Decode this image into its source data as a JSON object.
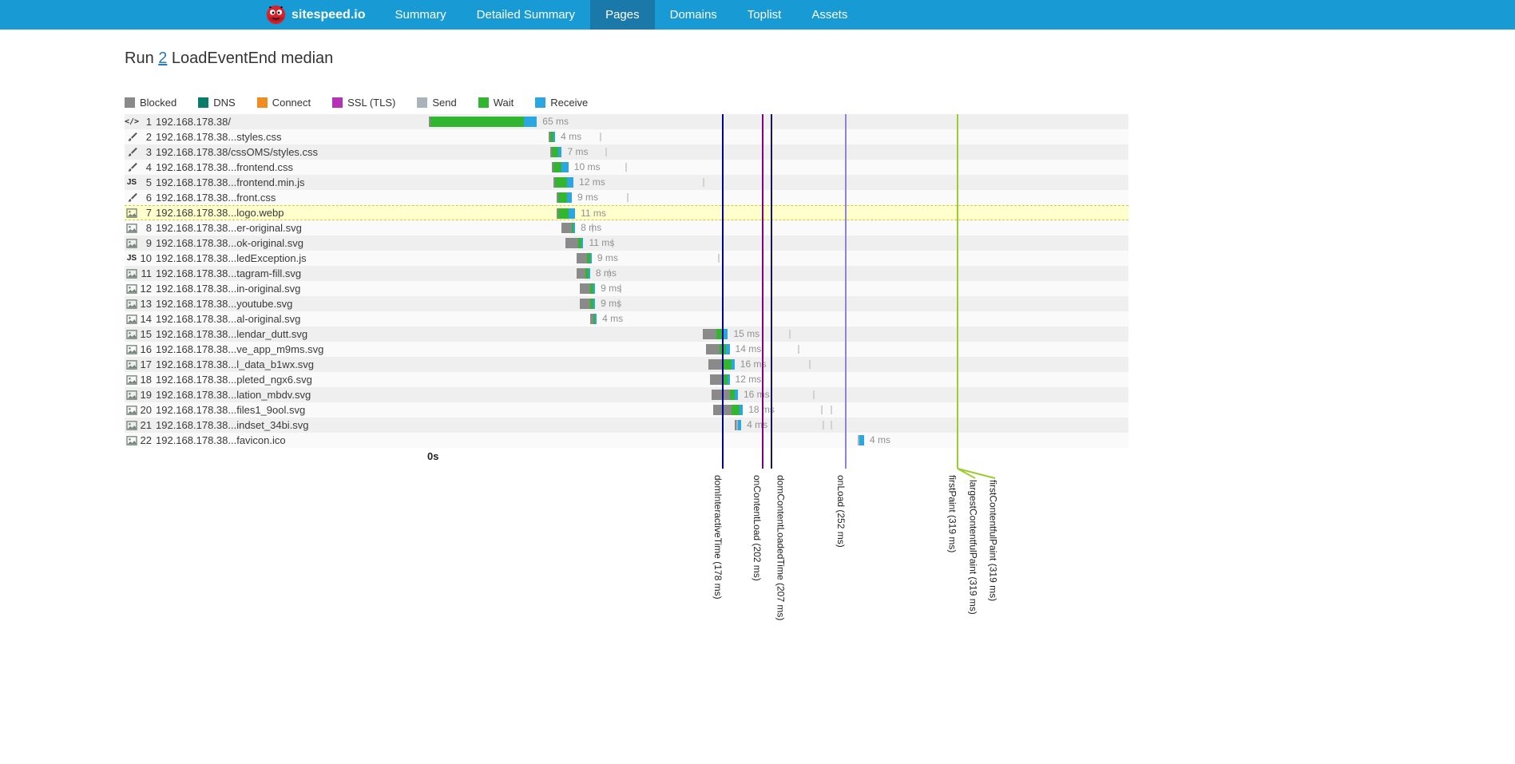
{
  "nav": {
    "brand": "sitespeed.io",
    "items": [
      {
        "label": "Summary",
        "active": false
      },
      {
        "label": "Detailed Summary",
        "active": false
      },
      {
        "label": "Pages",
        "active": true
      },
      {
        "label": "Domains",
        "active": false
      },
      {
        "label": "Toplist",
        "active": false
      },
      {
        "label": "Assets",
        "active": false
      }
    ]
  },
  "title": {
    "prefix": "Run ",
    "run": "2",
    "suffix": " LoadEventEnd median"
  },
  "legend": [
    {
      "key": "blocked",
      "label": "Blocked",
      "color": "#8a8a8a"
    },
    {
      "key": "dns",
      "label": "DNS",
      "color": "#0a7d68"
    },
    {
      "key": "connect",
      "label": "Connect",
      "color": "#ef8d22"
    },
    {
      "key": "ssl",
      "label": "SSL (TLS)",
      "color": "#b632b6"
    },
    {
      "key": "send",
      "label": "Send",
      "color": "#a9b3bc"
    },
    {
      "key": "wait",
      "label": "Wait",
      "color": "#32b632"
    },
    {
      "key": "receive",
      "label": "Receive",
      "color": "#2ba6e0"
    }
  ],
  "chart_data": {
    "type": "waterfall",
    "axis_start_label": "0s",
    "time_unit": "ms",
    "phase_colors": {
      "blocked": "#8a8a8a",
      "dns": "#0a7d68",
      "connect": "#ef8d22",
      "ssl": "#b632b6",
      "send": "#a9b3bc",
      "wait": "#32b632",
      "receive": "#2ba6e0"
    },
    "rows": [
      {
        "n": 1,
        "icon": "html",
        "label": "192.168.178.38/",
        "start": 1,
        "dur_label": "65 ms",
        "segments": [
          {
            "phase": "blocked",
            "ms": 1
          },
          {
            "phase": "wait",
            "ms": 56
          },
          {
            "phase": "receive",
            "ms": 8
          }
        ],
        "ticks": []
      },
      {
        "n": 2,
        "icon": "css",
        "label": "192.168.178.38...styles.css",
        "start": 73,
        "dur_label": "4 ms",
        "segments": [
          {
            "phase": "blocked",
            "ms": 1
          },
          {
            "phase": "wait",
            "ms": 2
          },
          {
            "phase": "receive",
            "ms": 1
          }
        ],
        "ticks": [
          104
        ]
      },
      {
        "n": 3,
        "icon": "css",
        "label": "192.168.178.38/cssOMS/styles.css",
        "start": 74,
        "dur_label": "7 ms",
        "segments": [
          {
            "phase": "blocked",
            "ms": 1
          },
          {
            "phase": "wait",
            "ms": 4
          },
          {
            "phase": "receive",
            "ms": 2
          }
        ],
        "ticks": [
          107
        ]
      },
      {
        "n": 4,
        "icon": "css",
        "label": "192.168.178.38...frontend.css",
        "start": 75,
        "dur_label": "10 ms",
        "segments": [
          {
            "phase": "blocked",
            "ms": 1
          },
          {
            "phase": "wait",
            "ms": 5
          },
          {
            "phase": "receive",
            "ms": 4
          }
        ],
        "ticks": [
          119
        ]
      },
      {
        "n": 5,
        "icon": "js",
        "label": "192.168.178.38...frontend.min.js",
        "start": 76,
        "dur_label": "12 ms",
        "segments": [
          {
            "phase": "blocked",
            "ms": 1
          },
          {
            "phase": "wait",
            "ms": 7
          },
          {
            "phase": "receive",
            "ms": 4
          }
        ],
        "ticks": [
          166
        ]
      },
      {
        "n": 6,
        "icon": "css",
        "label": "192.168.178.38...front.css",
        "start": 78,
        "dur_label": "9 ms",
        "segments": [
          {
            "phase": "blocked",
            "ms": 1
          },
          {
            "phase": "wait",
            "ms": 5
          },
          {
            "phase": "receive",
            "ms": 3
          }
        ],
        "ticks": [
          120
        ]
      },
      {
        "n": 7,
        "icon": "img",
        "label": "192.168.178.38...logo.webp",
        "start": 78,
        "dur_label": "11 ms",
        "highlight": true,
        "segments": [
          {
            "phase": "blocked",
            "ms": 1
          },
          {
            "phase": "wait",
            "ms": 6
          },
          {
            "phase": "receive",
            "ms": 4
          }
        ],
        "ticks": []
      },
      {
        "n": 8,
        "icon": "img",
        "label": "192.168.178.38...er-original.svg",
        "start": 81,
        "dur_label": "8 ms",
        "segments": [
          {
            "phase": "blocked",
            "ms": 6
          },
          {
            "phase": "wait",
            "ms": 1
          },
          {
            "phase": "receive",
            "ms": 1
          }
        ],
        "ticks": [
          99
        ]
      },
      {
        "n": 9,
        "icon": "img",
        "label": "192.168.178.38...ok-original.svg",
        "start": 83,
        "dur_label": "11 ms",
        "segments": [
          {
            "phase": "blocked",
            "ms": 8
          },
          {
            "phase": "wait",
            "ms": 2
          },
          {
            "phase": "receive",
            "ms": 1
          }
        ],
        "ticks": [
          111
        ]
      },
      {
        "n": 10,
        "icon": "js",
        "label": "192.168.178.38...ledException.js",
        "start": 90,
        "dur_label": "9 ms",
        "segments": [
          {
            "phase": "blocked",
            "ms": 6
          },
          {
            "phase": "wait",
            "ms": 2
          },
          {
            "phase": "receive",
            "ms": 1
          }
        ],
        "ticks": [
          175
        ]
      },
      {
        "n": 11,
        "icon": "img",
        "label": "192.168.178.38...tagram-fill.svg",
        "start": 90,
        "dur_label": "8 ms",
        "segments": [
          {
            "phase": "blocked",
            "ms": 5
          },
          {
            "phase": "wait",
            "ms": 2
          },
          {
            "phase": "receive",
            "ms": 1
          }
        ],
        "ticks": [
          109
        ]
      },
      {
        "n": 12,
        "icon": "img",
        "label": "192.168.178.38...in-original.svg",
        "start": 92,
        "dur_label": "9 ms",
        "segments": [
          {
            "phase": "blocked",
            "ms": 6
          },
          {
            "phase": "wait",
            "ms": 2
          },
          {
            "phase": "receive",
            "ms": 1
          }
        ],
        "ticks": [
          116
        ]
      },
      {
        "n": 13,
        "icon": "img",
        "label": "192.168.178.38...youtube.svg",
        "start": 92,
        "dur_label": "9 ms",
        "segments": [
          {
            "phase": "blocked",
            "ms": 6
          },
          {
            "phase": "wait",
            "ms": 2
          },
          {
            "phase": "receive",
            "ms": 1
          }
        ],
        "ticks": [
          115
        ]
      },
      {
        "n": 14,
        "icon": "img",
        "label": "192.168.178.38...al-original.svg",
        "start": 98,
        "dur_label": "4 ms",
        "segments": [
          {
            "phase": "blocked",
            "ms": 2
          },
          {
            "phase": "wait",
            "ms": 1
          },
          {
            "phase": "receive",
            "ms": 1
          }
        ],
        "ticks": []
      },
      {
        "n": 15,
        "icon": "img",
        "label": "192.168.178.38...lendar_dutt.svg",
        "start": 166,
        "dur_label": "15 ms",
        "segments": [
          {
            "phase": "blocked",
            "ms": 8
          },
          {
            "phase": "wait",
            "ms": 4
          },
          {
            "phase": "receive",
            "ms": 3
          }
        ],
        "ticks": [
          218
        ]
      },
      {
        "n": 16,
        "icon": "img",
        "label": "192.168.178.38...ve_app_m9ms.svg",
        "start": 168,
        "dur_label": "14 ms",
        "segments": [
          {
            "phase": "blocked",
            "ms": 8
          },
          {
            "phase": "wait",
            "ms": 4
          },
          {
            "phase": "receive",
            "ms": 2
          }
        ],
        "ticks": [
          223
        ]
      },
      {
        "n": 17,
        "icon": "img",
        "label": "192.168.178.38...l_data_b1wx.svg",
        "start": 169,
        "dur_label": "16 ms",
        "segments": [
          {
            "phase": "blocked",
            "ms": 9
          },
          {
            "phase": "wait",
            "ms": 5
          },
          {
            "phase": "receive",
            "ms": 2
          }
        ],
        "ticks": [
          230
        ]
      },
      {
        "n": 18,
        "icon": "img",
        "label": "192.168.178.38...pleted_ngx6.svg",
        "start": 170,
        "dur_label": "12 ms",
        "segments": [
          {
            "phase": "blocked",
            "ms": 8
          },
          {
            "phase": "wait",
            "ms": 3
          },
          {
            "phase": "receive",
            "ms": 1
          }
        ],
        "ticks": []
      },
      {
        "n": 19,
        "icon": "img",
        "label": "192.168.178.38...lation_mbdv.svg",
        "start": 171,
        "dur_label": "16 ms",
        "segments": [
          {
            "phase": "blocked",
            "ms": 11
          },
          {
            "phase": "wait",
            "ms": 3
          },
          {
            "phase": "receive",
            "ms": 2
          }
        ],
        "ticks": [
          232
        ]
      },
      {
        "n": 20,
        "icon": "img",
        "label": "192.168.178.38...files1_9ool.svg",
        "start": 172,
        "dur_label": "18 ms",
        "segments": [
          {
            "phase": "blocked",
            "ms": 11
          },
          {
            "phase": "wait",
            "ms": 5
          },
          {
            "phase": "receive",
            "ms": 2
          }
        ],
        "ticks": [
          237,
          243
        ]
      },
      {
        "n": 21,
        "icon": "img",
        "label": "192.168.178.38...indset_34bi.svg",
        "start": 185,
        "dur_label": "4 ms",
        "segments": [
          {
            "phase": "blocked",
            "ms": 1
          },
          {
            "phase": "send",
            "ms": 1
          },
          {
            "phase": "receive",
            "ms": 2
          }
        ],
        "ticks": [
          238,
          243
        ]
      },
      {
        "n": 22,
        "icon": "img",
        "label": "192.168.178.38...favicon.ico",
        "start": 259,
        "dur_label": "4 ms",
        "segments": [
          {
            "phase": "send",
            "ms": 1
          },
          {
            "phase": "receive",
            "ms": 3
          }
        ],
        "ticks": []
      }
    ],
    "markers": [
      {
        "name": "domInteractiveTime",
        "ms": 178,
        "label": "domInteractiveTime (178 ms)",
        "color": "#00008b",
        "label_dx": -13
      },
      {
        "name": "onContentLoad",
        "ms": 202,
        "label": "onContentLoad (202 ms)",
        "color": "#800080",
        "label_dx": -14
      },
      {
        "name": "domContentLoadedTime",
        "ms": 207,
        "label": "domContentLoadedTime (207 ms)",
        "color": "#14146b",
        "label_dx": 5
      },
      {
        "name": "onLoad",
        "ms": 252,
        "label": "onLoad (252 ms)",
        "color": "#8d83da",
        "label_dx": -13
      },
      {
        "name": "firstPaint",
        "ms": 319,
        "label": "firstPaint (319 ms)",
        "color": "#9acd32",
        "label_dx": -13
      },
      {
        "name": "largestContentfulPaint",
        "ms": 319,
        "label": "largestContentfulPaint (319 ms)",
        "color": "#9acd32",
        "label_dx": 13,
        "connector_dx": 22,
        "no_line": true
      },
      {
        "name": "firstContentfulPaint",
        "ms": 319,
        "label": "firstContentfulPaint (319 ms)",
        "color": "#9acd32",
        "label_dx": 38,
        "connector_dx": 47,
        "no_line": true
      }
    ]
  }
}
